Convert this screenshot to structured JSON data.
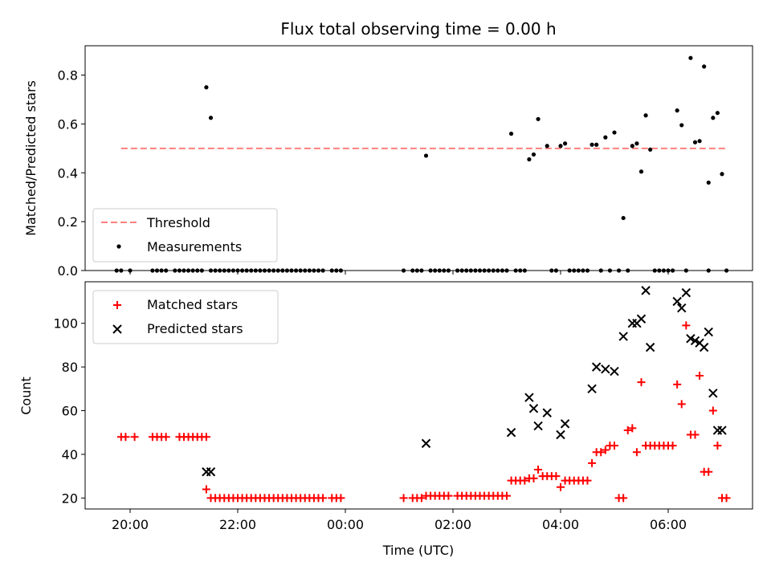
{
  "chart_data": {
    "title": "Flux total observing time = 0.00 h",
    "xlabel": "Time (UTC)",
    "x_ticks": [
      "20:00",
      "22:00",
      "00:00",
      "02:00",
      "04:00",
      "06:00"
    ],
    "colors": {
      "threshold": "#ff7f7f",
      "measurements": "#000000",
      "matched": "#ff0000",
      "predicted": "#000000"
    },
    "top": {
      "type": "scatter",
      "ylabel": "Matched/Predicted stars",
      "ylim": [
        0,
        0.92
      ],
      "y_ticks": [
        "0.0",
        "0.2",
        "0.4",
        "0.6",
        "0.8"
      ],
      "legend": {
        "placement": "lower-left",
        "entries": [
          "Threshold",
          "Measurements"
        ]
      },
      "threshold": {
        "name": "Threshold",
        "value": 0.5,
        "x_range": [
          "19:50",
          "07:05"
        ]
      },
      "measurements": {
        "name": "Measurements",
        "x": [
          "21:25",
          "21:30",
          "01:30",
          "03:05",
          "03:25",
          "03:30",
          "03:35",
          "03:45",
          "04:00",
          "04:05",
          "04:35",
          "04:40",
          "04:50",
          "05:00",
          "05:10",
          "05:20",
          "05:25",
          "05:30",
          "05:35",
          "05:40",
          "06:10",
          "06:15",
          "06:25",
          "06:30",
          "06:35",
          "06:40",
          "06:45",
          "06:50",
          "06:55",
          "07:00"
        ],
        "y": [
          0.75,
          0.625,
          0.47,
          0.56,
          0.455,
          0.475,
          0.62,
          0.51,
          0.51,
          0.52,
          0.515,
          0.515,
          0.545,
          0.565,
          0.215,
          0.51,
          0.52,
          0.405,
          0.635,
          0.495,
          0.655,
          0.595,
          0.87,
          0.525,
          0.53,
          0.835,
          0.36,
          0.625,
          0.645,
          0.395
        ],
        "zero_x": [
          "19:45",
          "19:50",
          "20:00",
          "20:25",
          "20:30",
          "20:35",
          "20:40",
          "20:50",
          "20:55",
          "21:00",
          "21:05",
          "21:10",
          "21:15",
          "21:20",
          "21:30",
          "21:35",
          "21:40",
          "21:45",
          "21:50",
          "21:55",
          "22:00",
          "22:05",
          "22:10",
          "22:15",
          "22:20",
          "22:25",
          "22:30",
          "22:35",
          "22:40",
          "22:45",
          "22:50",
          "22:55",
          "23:00",
          "23:05",
          "23:10",
          "23:15",
          "23:20",
          "23:25",
          "23:30",
          "23:35",
          "23:45",
          "23:50",
          "23:55",
          "01:05",
          "01:15",
          "01:20",
          "01:25",
          "01:35",
          "01:40",
          "01:45",
          "01:50",
          "01:55",
          "02:05",
          "02:10",
          "02:15",
          "02:20",
          "02:25",
          "02:30",
          "02:35",
          "02:40",
          "02:45",
          "02:50",
          "02:55",
          "03:00",
          "03:10",
          "03:15",
          "03:20",
          "03:50",
          "03:55",
          "04:10",
          "04:15",
          "04:20",
          "04:25",
          "04:30",
          "04:45",
          "04:55",
          "05:05",
          "05:15",
          "05:45",
          "05:50",
          "05:55",
          "06:00",
          "06:05",
          "06:20",
          "06:45",
          "07:05"
        ]
      }
    },
    "bottom": {
      "type": "scatter",
      "ylabel": "Count",
      "ylim": [
        15,
        119
      ],
      "y_ticks": [
        "20",
        "40",
        "60",
        "80",
        "100"
      ],
      "legend": {
        "placement": "upper-left",
        "entries": [
          "Matched stars",
          "Predicted stars"
        ]
      },
      "matched": {
        "name": "Matched stars",
        "x": [
          "19:50",
          "19:55",
          "20:05",
          "20:25",
          "20:30",
          "20:35",
          "20:40",
          "20:55",
          "21:00",
          "21:05",
          "21:10",
          "21:15",
          "21:20",
          "21:25",
          "21:25",
          "21:30",
          "21:35",
          "21:40",
          "21:45",
          "21:50",
          "21:55",
          "22:00",
          "22:05",
          "22:10",
          "22:15",
          "22:20",
          "22:25",
          "22:30",
          "22:35",
          "22:40",
          "22:45",
          "22:50",
          "22:55",
          "23:00",
          "23:05",
          "23:10",
          "23:15",
          "23:20",
          "23:25",
          "23:30",
          "23:35",
          "23:45",
          "23:50",
          "23:55",
          "01:05",
          "01:15",
          "01:20",
          "01:25",
          "01:30",
          "01:35",
          "01:40",
          "01:45",
          "01:50",
          "01:55",
          "02:05",
          "02:10",
          "02:15",
          "02:20",
          "02:25",
          "02:30",
          "02:35",
          "02:40",
          "02:45",
          "02:50",
          "02:55",
          "03:00",
          "03:05",
          "03:10",
          "03:15",
          "03:20",
          "03:25",
          "03:30",
          "03:35",
          "03:40",
          "03:45",
          "03:50",
          "03:55",
          "04:00",
          "04:05",
          "04:10",
          "04:15",
          "04:20",
          "04:25",
          "04:30",
          "04:35",
          "04:40",
          "04:45",
          "04:50",
          "04:55",
          "05:00",
          "05:05",
          "05:10",
          "05:15",
          "05:20",
          "05:25",
          "05:30",
          "05:35",
          "05:40",
          "05:45",
          "05:50",
          "05:55",
          "06:00",
          "06:05",
          "06:10",
          "06:15",
          "06:20",
          "06:25",
          "06:30",
          "06:35",
          "06:40",
          "06:45",
          "06:50",
          "06:55",
          "07:00",
          "07:05"
        ],
        "y": [
          48,
          48,
          48,
          48,
          48,
          48,
          48,
          48,
          48,
          48,
          48,
          48,
          48,
          48,
          24,
          20,
          20,
          20,
          20,
          20,
          20,
          20,
          20,
          20,
          20,
          20,
          20,
          20,
          20,
          20,
          20,
          20,
          20,
          20,
          20,
          20,
          20,
          20,
          20,
          20,
          20,
          20,
          20,
          20,
          20,
          20,
          20,
          20,
          21,
          21,
          21,
          21,
          21,
          21,
          21,
          21,
          21,
          21,
          21,
          21,
          21,
          21,
          21,
          21,
          21,
          21,
          28,
          28,
          28,
          28,
          29,
          29,
          33,
          30,
          30,
          30,
          30,
          25,
          28,
          28,
          28,
          28,
          28,
          28,
          36,
          41,
          41,
          42,
          44,
          44,
          20,
          20,
          51,
          52,
          41,
          73,
          44,
          44,
          44,
          44,
          44,
          44,
          44,
          72,
          63,
          99,
          49,
          49,
          76,
          32,
          32,
          60,
          44,
          20,
          20
        ]
      },
      "predicted": {
        "name": "Predicted stars",
        "x": [
          "21:25",
          "21:30",
          "01:30",
          "03:05",
          "03:25",
          "03:30",
          "03:35",
          "03:45",
          "04:00",
          "04:05",
          "04:35",
          "04:40",
          "04:50",
          "05:00",
          "05:10",
          "05:20",
          "05:25",
          "05:30",
          "05:35",
          "05:40",
          "06:10",
          "06:15",
          "06:20",
          "06:25",
          "06:30",
          "06:35",
          "06:40",
          "06:45",
          "06:50",
          "06:55",
          "07:00"
        ],
        "y": [
          32,
          32,
          45,
          50,
          66,
          61,
          53,
          59,
          49,
          54,
          70,
          80,
          79,
          78,
          94,
          100,
          100,
          102,
          115,
          89,
          110,
          107,
          114,
          93,
          92,
          91,
          89,
          96,
          68,
          51,
          51
        ]
      }
    }
  }
}
